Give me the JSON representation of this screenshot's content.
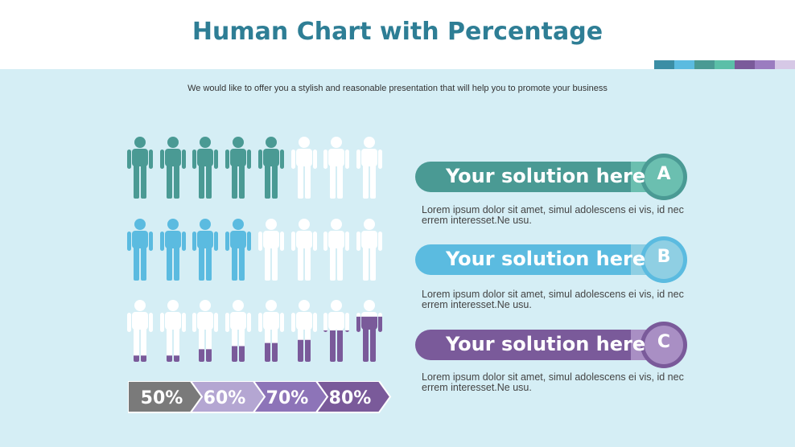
{
  "title": "Human Chart with Percentage",
  "subtitle": "We would like to offer you a stylish and reasonable presentation that will help you to promote your business",
  "colors": {
    "background": "#d5eef5",
    "title": "#2e7e95",
    "teal": "#4a9a94",
    "blue": "#5bbbe0",
    "purple": "#7a5a9a",
    "person_empty": "#ffffff",
    "strip": [
      "#3b8ea5",
      "#5bbbe0",
      "#4a9a94",
      "#5bbfa8",
      "#7a5a9a",
      "#9b7cc0",
      "#d6c8e6"
    ]
  },
  "human_rows": [
    {
      "total": 8,
      "filled": 5,
      "color": "teal",
      "mode": "whole"
    },
    {
      "total": 8,
      "filled": 4,
      "color": "blue",
      "mode": "whole"
    },
    {
      "total": 8,
      "mode": "partial",
      "color": "purple",
      "levels": [
        0.1,
        0.1,
        0.2,
        0.25,
        0.3,
        0.35,
        0.5,
        0.72
      ]
    }
  ],
  "percent_arrows": [
    {
      "label": "50%",
      "color": "#7a7a7a"
    },
    {
      "label": "60%",
      "color": "#b4a6d2"
    },
    {
      "label": "70%",
      "color": "#8d74b8"
    },
    {
      "label": "80%",
      "color": "#7a5a9a"
    }
  ],
  "solutions": [
    {
      "letter": "A",
      "title": "Your solution here",
      "text": "Lorem ipsum dolor sit amet, simul adolescens ei vis, id nec errem interesset.Ne usu.",
      "color": "#4a9a94",
      "light": "#6bbfb0"
    },
    {
      "letter": "B",
      "title": "Your solution here",
      "text": "Lorem ipsum dolor sit amet, simul adolescens ei vis, id nec errem interesset.Ne usu.",
      "color": "#5bbbe0",
      "light": "#8fcfe3"
    },
    {
      "letter": "C",
      "title": "Your solution here",
      "text": "Lorem ipsum dolor sit amet, simul adolescens ei vis, id nec errem interesset.Ne usu.",
      "color": "#7a5a9a",
      "light": "#a98fc4"
    }
  ]
}
